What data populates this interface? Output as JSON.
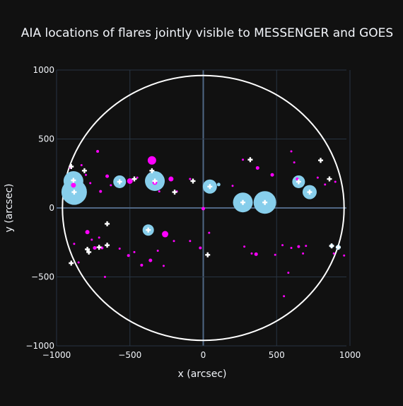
{
  "chart_data": {
    "type": "scatter",
    "title": "AIA locations of flares jointly visible to MESSENGER and GOES",
    "xlabel": "x (arcsec)",
    "ylabel": "y (arcsec)",
    "xlim": [
      -1000,
      1000
    ],
    "ylim": [
      -1000,
      1000
    ],
    "x_ticks": [
      -1000,
      -500,
      0,
      500,
      1000
    ],
    "y_ticks": [
      -1000,
      -500,
      0,
      500,
      1000
    ],
    "x_tick_labels": [
      "−1000",
      "−500",
      "0",
      "500",
      "1000"
    ],
    "y_tick_labels": [
      "−1000",
      "−500",
      "0",
      "500",
      "1000"
    ],
    "grid": true,
    "legend": "none",
    "colors": {
      "background": "#111111",
      "grid": "#283442",
      "zero_line": "#506784",
      "limb": "#ffffff",
      "large_flare": "#87ceeb",
      "small_flare": "#ff00ff",
      "marker_cross": "#ffffff"
    },
    "limb_circle": {
      "center": [
        0,
        0
      ],
      "radius_arcsec": 960
    },
    "series": [
      {
        "marker": "circle",
        "color": "#87ceeb",
        "points": [
          {
            "x": -880,
            "y": 115,
            "size": 36
          },
          {
            "x": -885,
            "y": 195,
            "size": 28
          },
          {
            "x": -570,
            "y": 190,
            "size": 18
          },
          {
            "x": -330,
            "y": 195,
            "size": 28
          },
          {
            "x": -375,
            "y": -160,
            "size": 16
          },
          {
            "x": 45,
            "y": 155,
            "size": 20
          },
          {
            "x": 270,
            "y": 40,
            "size": 28
          },
          {
            "x": 420,
            "y": 40,
            "size": 32
          },
          {
            "x": 650,
            "y": 190,
            "size": 18
          },
          {
            "x": 725,
            "y": 115,
            "size": 20
          },
          {
            "x": 920,
            "y": -285,
            "size": 7
          },
          {
            "x": 875,
            "y": -275,
            "size": 6
          },
          {
            "x": -555,
            "y": 200,
            "size": 6
          },
          {
            "x": 105,
            "y": 170,
            "size": 5
          }
        ]
      },
      {
        "marker": "circle",
        "color": "#ff00ff",
        "points": [
          {
            "x": -885,
            "y": 165,
            "size": 7
          },
          {
            "x": -905,
            "y": 295,
            "size": 4
          },
          {
            "x": -830,
            "y": 310,
            "size": 3
          },
          {
            "x": -800,
            "y": 240,
            "size": 3
          },
          {
            "x": -770,
            "y": 180,
            "size": 3
          },
          {
            "x": -720,
            "y": 410,
            "size": 4
          },
          {
            "x": -700,
            "y": 120,
            "size": 4
          },
          {
            "x": -655,
            "y": 230,
            "size": 5
          },
          {
            "x": -630,
            "y": 165,
            "size": 3
          },
          {
            "x": -500,
            "y": 195,
            "size": 8
          },
          {
            "x": -450,
            "y": 220,
            "size": 3
          },
          {
            "x": -350,
            "y": 345,
            "size": 12
          },
          {
            "x": -330,
            "y": 185,
            "size": 7
          },
          {
            "x": -300,
            "y": 120,
            "size": 3
          },
          {
            "x": -220,
            "y": 210,
            "size": 7
          },
          {
            "x": -180,
            "y": 120,
            "size": 3
          },
          {
            "x": -90,
            "y": 210,
            "size": 3
          },
          {
            "x": 0,
            "y": -5,
            "size": 5
          },
          {
            "x": 200,
            "y": 160,
            "size": 3
          },
          {
            "x": 270,
            "y": 350,
            "size": 3
          },
          {
            "x": 370,
            "y": 290,
            "size": 5
          },
          {
            "x": 470,
            "y": 240,
            "size": 5
          },
          {
            "x": 600,
            "y": 410,
            "size": 3
          },
          {
            "x": 620,
            "y": 330,
            "size": 3
          },
          {
            "x": 640,
            "y": 210,
            "size": 4
          },
          {
            "x": 780,
            "y": 220,
            "size": 3
          },
          {
            "x": 830,
            "y": 170,
            "size": 3
          },
          {
            "x": 900,
            "y": 190,
            "size": 3
          },
          {
            "x": -790,
            "y": -175,
            "size": 6
          },
          {
            "x": -760,
            "y": -230,
            "size": 3
          },
          {
            "x": -710,
            "y": -215,
            "size": 3
          },
          {
            "x": -690,
            "y": -290,
            "size": 4
          },
          {
            "x": -740,
            "y": -290,
            "size": 5
          },
          {
            "x": -880,
            "y": -260,
            "size": 3
          },
          {
            "x": -850,
            "y": -395,
            "size": 3
          },
          {
            "x": -670,
            "y": -500,
            "size": 3
          },
          {
            "x": -570,
            "y": -295,
            "size": 3
          },
          {
            "x": -510,
            "y": -345,
            "size": 4
          },
          {
            "x": -470,
            "y": -320,
            "size": 3
          },
          {
            "x": -420,
            "y": -415,
            "size": 4
          },
          {
            "x": -360,
            "y": -380,
            "size": 5
          },
          {
            "x": -310,
            "y": -310,
            "size": 3
          },
          {
            "x": -270,
            "y": -420,
            "size": 3
          },
          {
            "x": -260,
            "y": -190,
            "size": 9
          },
          {
            "x": -200,
            "y": -240,
            "size": 3
          },
          {
            "x": -90,
            "y": -240,
            "size": 3
          },
          {
            "x": -20,
            "y": -290,
            "size": 4
          },
          {
            "x": 40,
            "y": -180,
            "size": 3
          },
          {
            "x": 280,
            "y": -280,
            "size": 3
          },
          {
            "x": 330,
            "y": -330,
            "size": 3
          },
          {
            "x": 360,
            "y": -335,
            "size": 5
          },
          {
            "x": 490,
            "y": -340,
            "size": 3
          },
          {
            "x": 540,
            "y": -270,
            "size": 3
          },
          {
            "x": 600,
            "y": -290,
            "size": 3
          },
          {
            "x": 650,
            "y": -280,
            "size": 4
          },
          {
            "x": 680,
            "y": -330,
            "size": 3
          },
          {
            "x": 700,
            "y": -275,
            "size": 3
          },
          {
            "x": 580,
            "y": -470,
            "size": 3
          },
          {
            "x": 550,
            "y": -640,
            "size": 3
          },
          {
            "x": 890,
            "y": -330,
            "size": 3
          },
          {
            "x": 960,
            "y": -345,
            "size": 3
          }
        ]
      },
      {
        "marker": "cross",
        "color": "#ffffff",
        "points": [
          {
            "x": -880,
            "y": 115
          },
          {
            "x": -885,
            "y": 200
          },
          {
            "x": -900,
            "y": 300
          },
          {
            "x": -810,
            "y": 270
          },
          {
            "x": -570,
            "y": 190
          },
          {
            "x": -470,
            "y": 210
          },
          {
            "x": -350,
            "y": 270
          },
          {
            "x": -330,
            "y": 195
          },
          {
            "x": -195,
            "y": 115
          },
          {
            "x": -70,
            "y": 195
          },
          {
            "x": 45,
            "y": 155
          },
          {
            "x": 320,
            "y": 350
          },
          {
            "x": 270,
            "y": 40
          },
          {
            "x": 420,
            "y": 40
          },
          {
            "x": 650,
            "y": 190
          },
          {
            "x": 725,
            "y": 115
          },
          {
            "x": 800,
            "y": 345
          },
          {
            "x": 860,
            "y": 210
          },
          {
            "x": -655,
            "y": -115
          },
          {
            "x": -375,
            "y": -160
          },
          {
            "x": -790,
            "y": -300
          },
          {
            "x": -780,
            "y": -320
          },
          {
            "x": -710,
            "y": -285
          },
          {
            "x": -655,
            "y": -270
          },
          {
            "x": 30,
            "y": -340
          },
          {
            "x": 875,
            "y": -275
          },
          {
            "x": 920,
            "y": -285
          },
          {
            "x": -900,
            "y": -400
          }
        ]
      }
    ]
  }
}
